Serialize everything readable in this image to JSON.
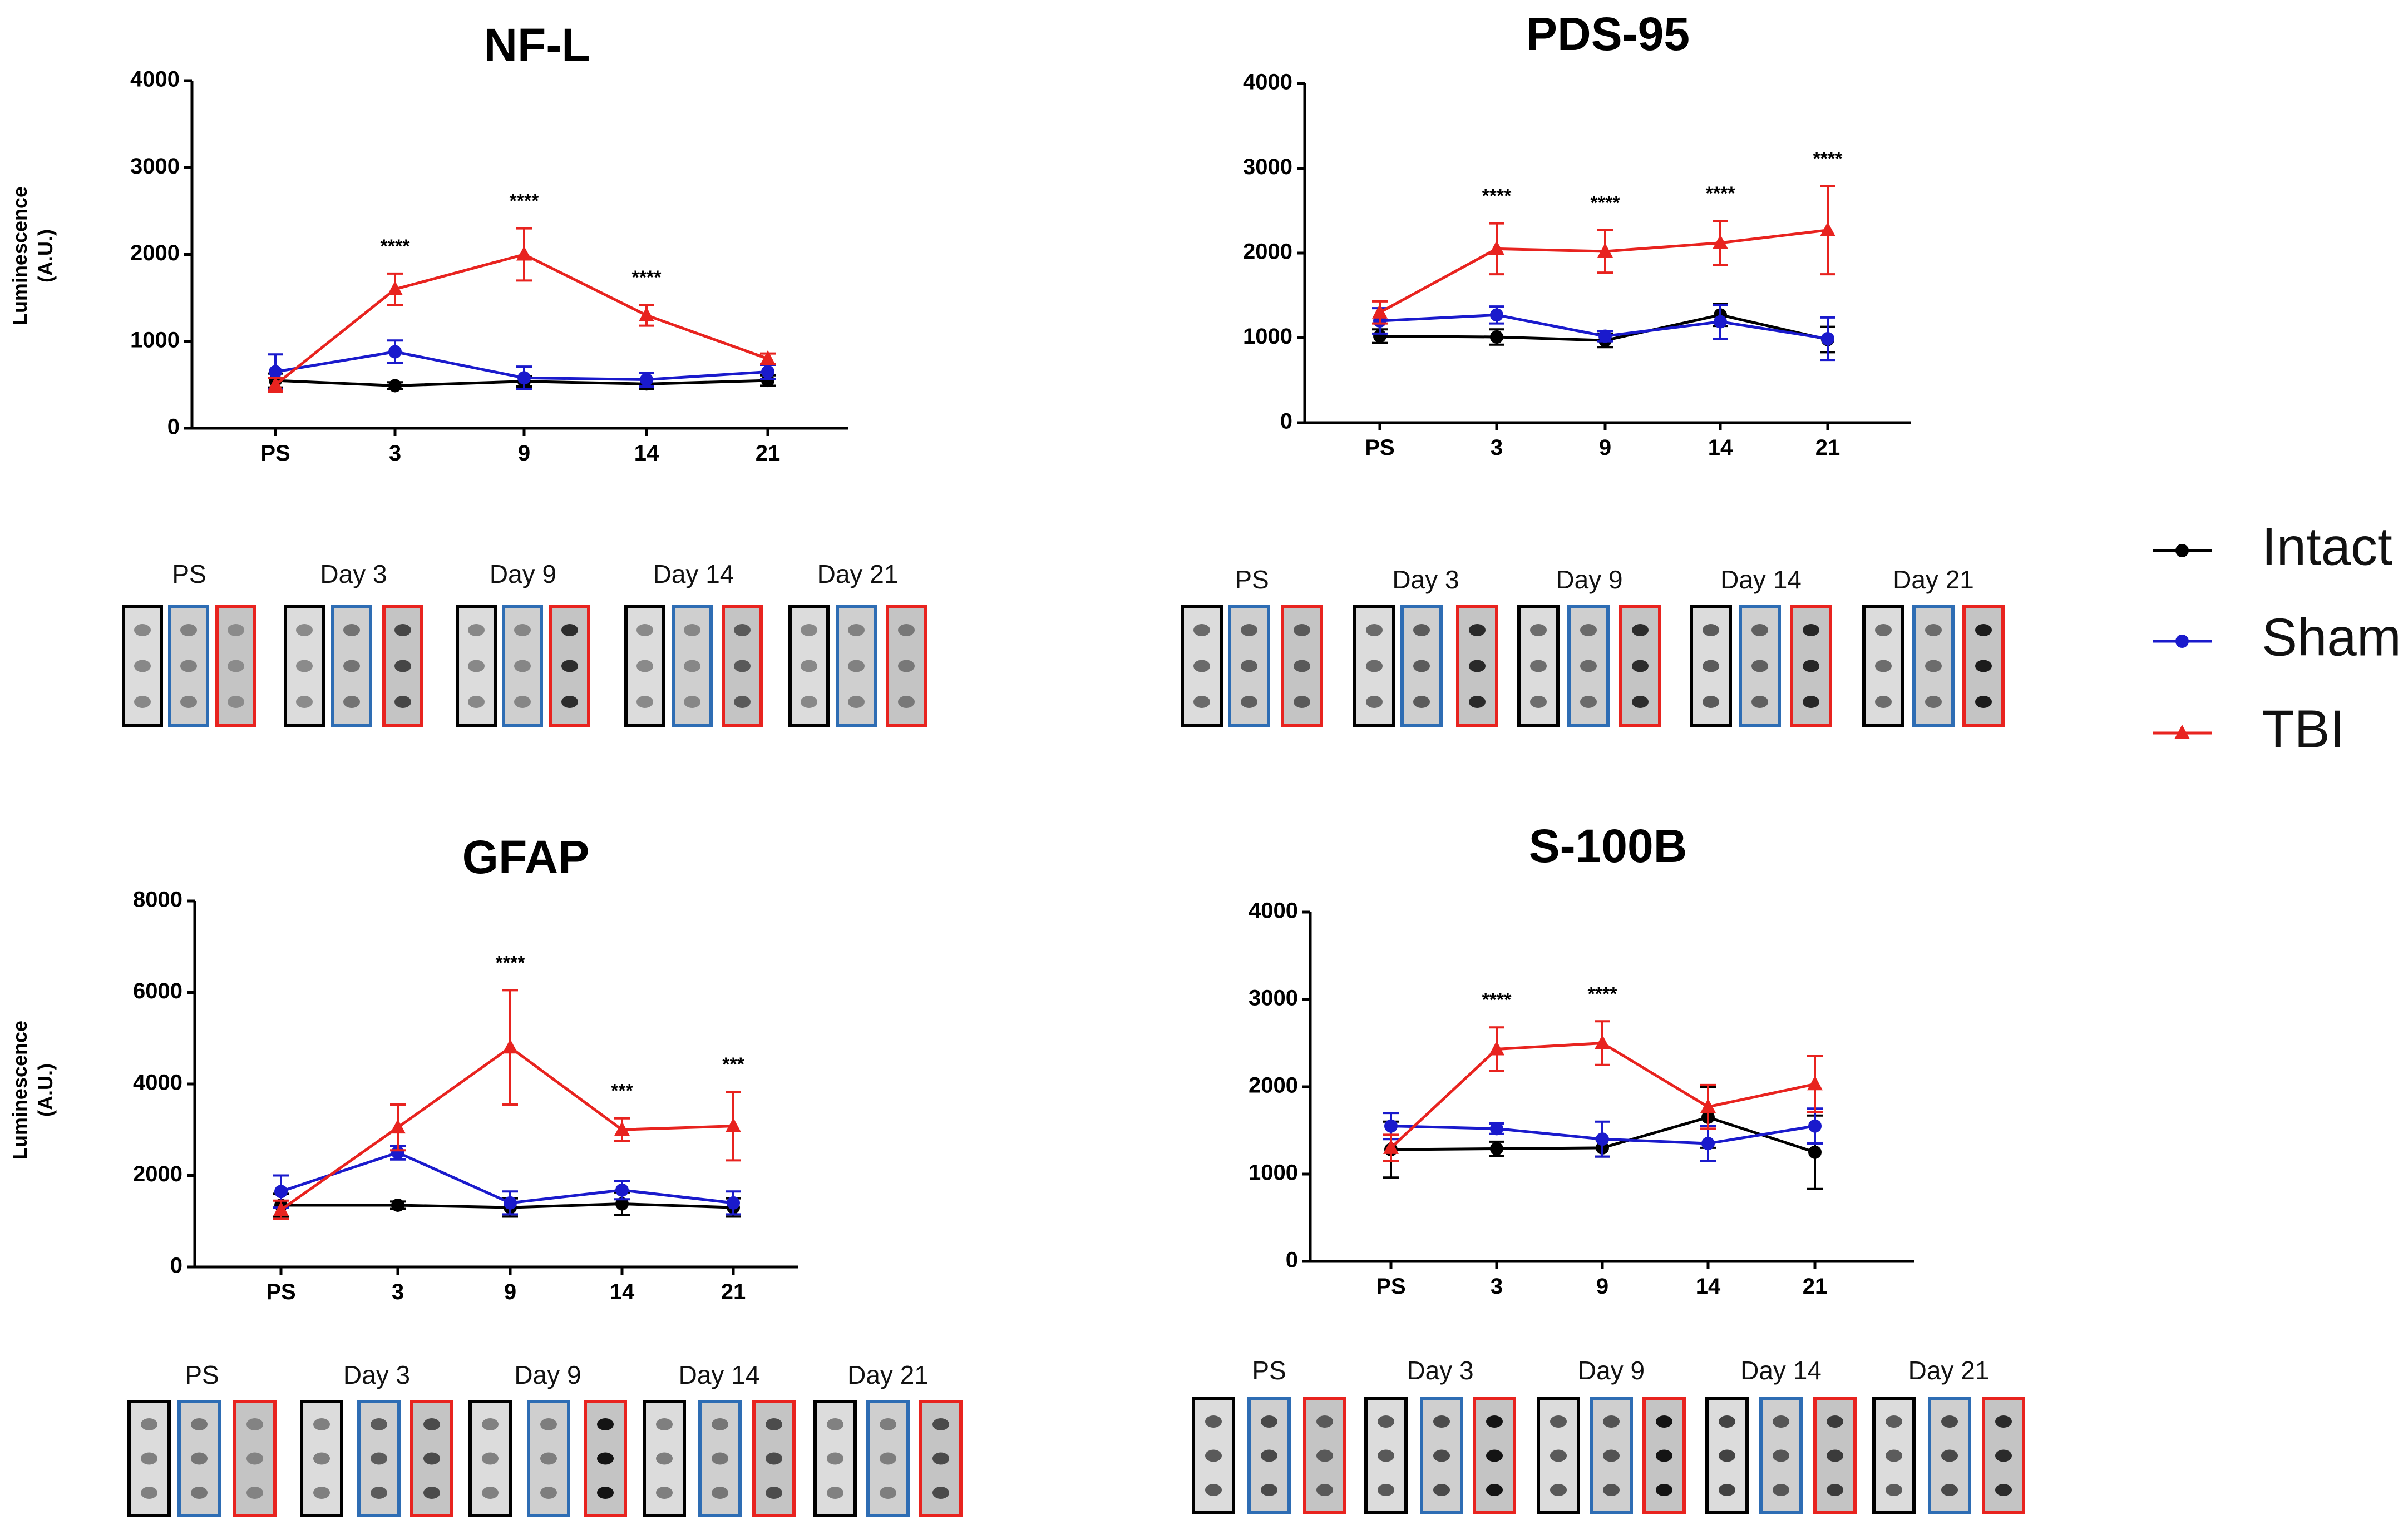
{
  "colors": {
    "Intact": "#000000",
    "Sham": "#1a1acc",
    "TBI": "#e8231f",
    "blue_border": "#2e6db4"
  },
  "legend": [
    {
      "name": "Intact",
      "marker": "circle"
    },
    {
      "name": "Sham",
      "marker": "circle"
    },
    {
      "name": "TBI",
      "marker": "triangle"
    }
  ],
  "chart_data": [
    {
      "type": "line",
      "title": "NF-L",
      "ylabel": "Luminescence (A.U.)",
      "categories": [
        "PS",
        "3",
        "9",
        "14",
        "21"
      ],
      "ylim": [
        0,
        4000
      ],
      "yticks": [
        "0",
        "1000",
        "2000",
        "3000",
        "4000"
      ],
      "series": [
        {
          "name": "Intact",
          "values": [
            550,
            490,
            540,
            510,
            550
          ],
          "errors": [
            80,
            40,
            60,
            60,
            60
          ]
        },
        {
          "name": "Sham",
          "values": [
            650,
            880,
            580,
            560,
            650
          ],
          "errors": [
            200,
            130,
            130,
            80,
            80
          ]
        },
        {
          "name": "TBI",
          "values": [
            500,
            1600,
            2000,
            1300,
            800
          ],
          "errors": [
            80,
            180,
            300,
            120,
            60
          ]
        }
      ],
      "significance": [
        "",
        "****",
        "****",
        "****",
        ""
      ],
      "blot_labels": [
        "PS",
        "Day 3",
        "Day 9",
        "Day 14",
        "Day 21"
      ]
    },
    {
      "type": "line",
      "title": "PDS-95",
      "ylabel": "",
      "categories": [
        "PS",
        "3",
        "9",
        "14",
        "21"
      ],
      "ylim": [
        0,
        4000
      ],
      "yticks": [
        "0",
        "1000",
        "2000",
        "3000",
        "4000"
      ],
      "series": [
        {
          "name": "Intact",
          "values": [
            1020,
            1010,
            970,
            1270,
            980
          ],
          "errors": [
            80,
            90,
            80,
            130,
            150
          ]
        },
        {
          "name": "Sham",
          "values": [
            1200,
            1270,
            1020,
            1190,
            990
          ],
          "errors": [
            150,
            100,
            60,
            200,
            250
          ]
        },
        {
          "name": "TBI",
          "values": [
            1300,
            2050,
            2020,
            2120,
            2270
          ],
          "errors": [
            130,
            300,
            250,
            260,
            520
          ]
        }
      ],
      "significance": [
        "",
        "****",
        "****",
        "****",
        "****"
      ],
      "blot_labels": [
        "PS",
        "Day 3",
        "Day  9",
        "Day 14",
        "Day 21"
      ]
    },
    {
      "type": "line",
      "title": "GFAP",
      "ylabel": "Luminescence (A.U.)",
      "categories": [
        "PS",
        "3",
        "9",
        "14",
        "21"
      ],
      "ylim": [
        0,
        8000
      ],
      "yticks": [
        "0",
        "2000",
        "4000",
        "6000",
        "8000"
      ],
      "series": [
        {
          "name": "Intact",
          "values": [
            1350,
            1350,
            1300,
            1380,
            1300
          ],
          "errors": [
            250,
            80,
            200,
            250,
            200
          ]
        },
        {
          "name": "Sham",
          "values": [
            1650,
            2500,
            1400,
            1680,
            1400
          ],
          "errors": [
            350,
            150,
            250,
            200,
            250
          ]
        },
        {
          "name": "TBI",
          "values": [
            1250,
            3050,
            4800,
            3000,
            3080
          ],
          "errors": [
            200,
            500,
            1250,
            250,
            750
          ]
        }
      ],
      "significance": [
        "",
        "",
        "****",
        "***",
        "***"
      ],
      "blot_labels": [
        "PS",
        "Day 3",
        "Day 9",
        "Day 14",
        "Day 21"
      ]
    },
    {
      "type": "line",
      "title": "S-100B",
      "ylabel": "",
      "categories": [
        "PS",
        "3",
        "9",
        "14",
        "21"
      ],
      "ylim": [
        0,
        4000
      ],
      "yticks": [
        "0",
        "1000",
        "2000",
        "3000",
        "4000"
      ],
      "series": [
        {
          "name": "Intact",
          "values": [
            1280,
            1290,
            1300,
            1650,
            1250
          ],
          "errors": [
            320,
            80,
            100,
            350,
            420
          ]
        },
        {
          "name": "Sham",
          "values": [
            1550,
            1520,
            1400,
            1350,
            1550
          ],
          "errors": [
            150,
            60,
            200,
            200,
            200
          ]
        },
        {
          "name": "TBI",
          "values": [
            1300,
            2430,
            2500,
            1770,
            2030
          ],
          "errors": [
            150,
            250,
            250,
            250,
            320
          ]
        }
      ],
      "significance": [
        "",
        "****",
        "****",
        "",
        ""
      ],
      "blot_labels": [
        "PS",
        "Day 3",
        "Day 9",
        "Day 14",
        "Day 21"
      ]
    }
  ]
}
